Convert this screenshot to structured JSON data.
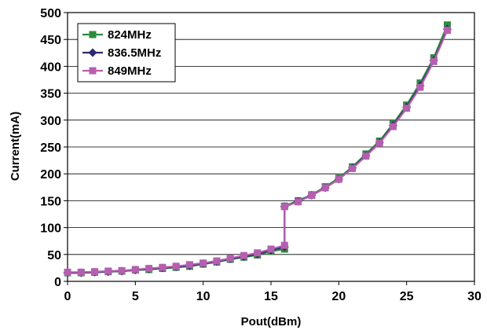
{
  "chart_data": {
    "type": "line",
    "xlabel": "Pout(dBm)",
    "ylabel": "Current(mA)",
    "xlim": [
      0,
      30
    ],
    "ylim": [
      0,
      500
    ],
    "xticks": [
      0,
      5,
      10,
      15,
      20,
      25,
      30
    ],
    "yticks": [
      0,
      50,
      100,
      150,
      200,
      250,
      300,
      350,
      400,
      450,
      500
    ],
    "grid": "horizontal",
    "legend_position": "top-left",
    "series": [
      {
        "name": "824MHz",
        "color": "#2e8b3e",
        "marker": "square",
        "x": [
          0,
          1,
          2,
          3,
          4,
          5,
          6,
          7,
          8,
          9,
          10,
          11,
          12,
          13,
          14,
          15,
          16,
          16,
          17,
          18,
          19,
          20,
          21,
          22,
          23,
          24,
          25,
          26,
          27,
          28
        ],
        "y": [
          16,
          16,
          17,
          18,
          19,
          21,
          22,
          24,
          26,
          28,
          32,
          36,
          41,
          45,
          49,
          56,
          60,
          140,
          150,
          161,
          176,
          192,
          213,
          237,
          261,
          293,
          328,
          369,
          416,
          477
        ]
      },
      {
        "name": "836.5MHz",
        "color": "#2e2a6b",
        "marker": "diamond",
        "x": [
          0,
          1,
          2,
          3,
          4,
          5,
          6,
          7,
          8,
          9,
          10,
          11,
          12,
          13,
          14,
          15,
          16,
          16,
          17,
          18,
          19,
          20,
          21,
          22,
          23,
          24,
          25,
          26,
          27,
          28
        ],
        "y": [
          16,
          16,
          17,
          18,
          19,
          21,
          23,
          25,
          27,
          29,
          33,
          37,
          42,
          46,
          51,
          58,
          64,
          139,
          149,
          160,
          174,
          190,
          211,
          234,
          258,
          290,
          324,
          364,
          411,
          469
        ]
      },
      {
        "name": "849MHz",
        "color": "#b55fb0",
        "marker": "square",
        "x": [
          0,
          1,
          2,
          3,
          4,
          5,
          6,
          7,
          8,
          9,
          10,
          11,
          12,
          13,
          14,
          15,
          16,
          16,
          17,
          18,
          19,
          20,
          21,
          22,
          23,
          24,
          25,
          26,
          27,
          28
        ],
        "y": [
          17,
          17,
          18,
          19,
          20,
          22,
          24,
          26,
          28,
          31,
          34,
          38,
          43,
          48,
          53,
          60,
          67,
          139,
          148,
          160,
          174,
          190,
          210,
          233,
          257,
          288,
          322,
          361,
          409,
          467
        ]
      }
    ]
  }
}
